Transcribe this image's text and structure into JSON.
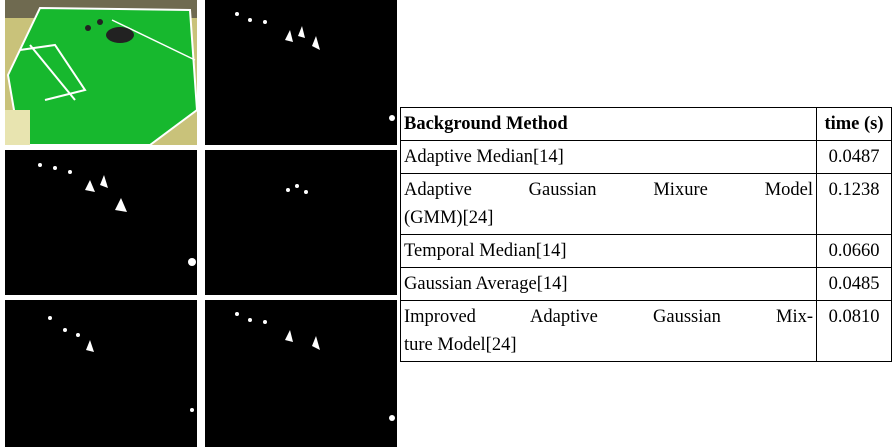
{
  "table": {
    "header": [
      "Background Method",
      "time (s)"
    ],
    "rows": [
      [
        [
          "Adaptive Median[14]"
        ],
        "0.0487"
      ],
      [
        [
          "Adaptive Gaussian Mixure Model",
          "(GMM)[24]"
        ],
        "0.1238"
      ],
      [
        [
          "Temporal Median[14]"
        ],
        "0.0660"
      ],
      [
        [
          "Gaussian Average[14]"
        ],
        "0.0485"
      ],
      [
        [
          "Improved Adaptive Gaussian Mix-",
          "ture Model[24]"
        ],
        "0.0810"
      ]
    ]
  }
}
